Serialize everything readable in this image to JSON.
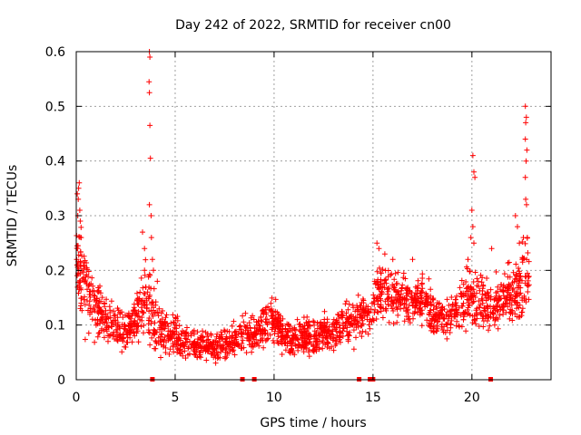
{
  "chart_data": {
    "type": "scatter",
    "title": "Day 242 of 2022, SRMTID for receiver cn00",
    "xlabel": "GPS time / hours",
    "ylabel": "SRMTID / TECUs",
    "xlim": [
      0,
      24
    ],
    "ylim": [
      0,
      0.6
    ],
    "x_ticks": [
      0,
      5,
      10,
      15,
      20
    ],
    "x_tick_labels": [
      "0",
      "5",
      "10",
      "15",
      "20"
    ],
    "y_ticks": [
      0,
      0.1,
      0.2,
      0.3,
      0.4,
      0.5,
      0.6
    ],
    "y_tick_labels": [
      "0",
      "0.1",
      "0.2",
      "0.3",
      "0.4",
      "0.5",
      "0.6"
    ],
    "grid": true,
    "marker": "+",
    "series_color": "#ff0000",
    "trend": {
      "x": [
        0.0,
        0.3,
        0.6,
        1.0,
        1.5,
        2.0,
        2.5,
        3.0,
        3.4,
        3.8,
        4.2,
        5.0,
        6.0,
        7.0,
        8.0,
        8.6,
        9.0,
        9.5,
        10.0,
        10.5,
        11.0,
        11.5,
        12.0,
        12.5,
        13.0,
        13.5,
        14.0,
        14.5,
        14.9,
        15.2,
        15.5,
        16.0,
        16.5,
        17.0,
        17.5,
        18.0,
        18.5,
        19.0,
        19.5,
        20.0,
        20.5,
        21.0,
        21.5,
        22.0,
        22.5,
        22.9
      ],
      "y": [
        0.22,
        0.2,
        0.16,
        0.13,
        0.11,
        0.1,
        0.09,
        0.11,
        0.14,
        0.13,
        0.09,
        0.08,
        0.06,
        0.06,
        0.07,
        0.09,
        0.08,
        0.1,
        0.11,
        0.08,
        0.07,
        0.08,
        0.07,
        0.09,
        0.08,
        0.1,
        0.11,
        0.12,
        0.11,
        0.16,
        0.17,
        0.15,
        0.15,
        0.14,
        0.15,
        0.13,
        0.11,
        0.12,
        0.14,
        0.15,
        0.14,
        0.13,
        0.15,
        0.16,
        0.17,
        0.19
      ],
      "spread": [
        0.06,
        0.07,
        0.06,
        0.04,
        0.035,
        0.03,
        0.03,
        0.04,
        0.05,
        0.05,
        0.03,
        0.03,
        0.02,
        0.02,
        0.025,
        0.03,
        0.025,
        0.03,
        0.03,
        0.025,
        0.025,
        0.025,
        0.025,
        0.025,
        0.025,
        0.03,
        0.03,
        0.03,
        0.03,
        0.04,
        0.04,
        0.035,
        0.035,
        0.035,
        0.035,
        0.035,
        0.03,
        0.03,
        0.035,
        0.04,
        0.04,
        0.04,
        0.04,
        0.045,
        0.05,
        0.05
      ]
    },
    "outliers": [
      {
        "x": 0.05,
        "y": 0.34
      },
      {
        "x": 0.1,
        "y": 0.33
      },
      {
        "x": 0.12,
        "y": 0.35
      },
      {
        "x": 0.15,
        "y": 0.36
      },
      {
        "x": 0.18,
        "y": 0.31
      },
      {
        "x": 0.2,
        "y": 0.29
      },
      {
        "x": 0.25,
        "y": 0.26
      },
      {
        "x": 0.08,
        "y": 0.3
      },
      {
        "x": 3.35,
        "y": 0.27
      },
      {
        "x": 3.45,
        "y": 0.24
      },
      {
        "x": 3.7,
        "y": 0.6
      },
      {
        "x": 3.72,
        "y": 0.59
      },
      {
        "x": 3.68,
        "y": 0.545
      },
      {
        "x": 3.7,
        "y": 0.525
      },
      {
        "x": 3.72,
        "y": 0.465
      },
      {
        "x": 3.75,
        "y": 0.405
      },
      {
        "x": 3.7,
        "y": 0.32
      },
      {
        "x": 3.78,
        "y": 0.3
      },
      {
        "x": 3.8,
        "y": 0.26
      },
      {
        "x": 3.85,
        "y": 0.22
      },
      {
        "x": 3.9,
        "y": 0.2
      },
      {
        "x": 4.1,
        "y": 0.18
      },
      {
        "x": 20.05,
        "y": 0.41
      },
      {
        "x": 20.1,
        "y": 0.38
      },
      {
        "x": 20.15,
        "y": 0.37
      },
      {
        "x": 20.0,
        "y": 0.31
      },
      {
        "x": 20.05,
        "y": 0.28
      },
      {
        "x": 19.95,
        "y": 0.26
      },
      {
        "x": 20.1,
        "y": 0.25
      },
      {
        "x": 21.0,
        "y": 0.24
      },
      {
        "x": 22.7,
        "y": 0.5
      },
      {
        "x": 22.75,
        "y": 0.48
      },
      {
        "x": 22.72,
        "y": 0.47
      },
      {
        "x": 22.7,
        "y": 0.44
      },
      {
        "x": 22.78,
        "y": 0.42
      },
      {
        "x": 22.74,
        "y": 0.4
      },
      {
        "x": 22.7,
        "y": 0.37
      },
      {
        "x": 22.72,
        "y": 0.33
      },
      {
        "x": 22.76,
        "y": 0.32
      },
      {
        "x": 22.2,
        "y": 0.3
      },
      {
        "x": 22.3,
        "y": 0.28
      },
      {
        "x": 22.6,
        "y": 0.26
      },
      {
        "x": 22.4,
        "y": 0.25
      },
      {
        "x": 22.8,
        "y": 0.26
      },
      {
        "x": 15.2,
        "y": 0.25
      },
      {
        "x": 15.3,
        "y": 0.24
      },
      {
        "x": 15.6,
        "y": 0.23
      },
      {
        "x": 16.0,
        "y": 0.22
      },
      {
        "x": 17.0,
        "y": 0.22
      },
      {
        "x": 19.8,
        "y": 0.22
      }
    ],
    "zero_markers": [
      3.85,
      8.4,
      9.0,
      14.3,
      14.85,
      15.0,
      20.95
    ],
    "points_per_hour": 90
  }
}
